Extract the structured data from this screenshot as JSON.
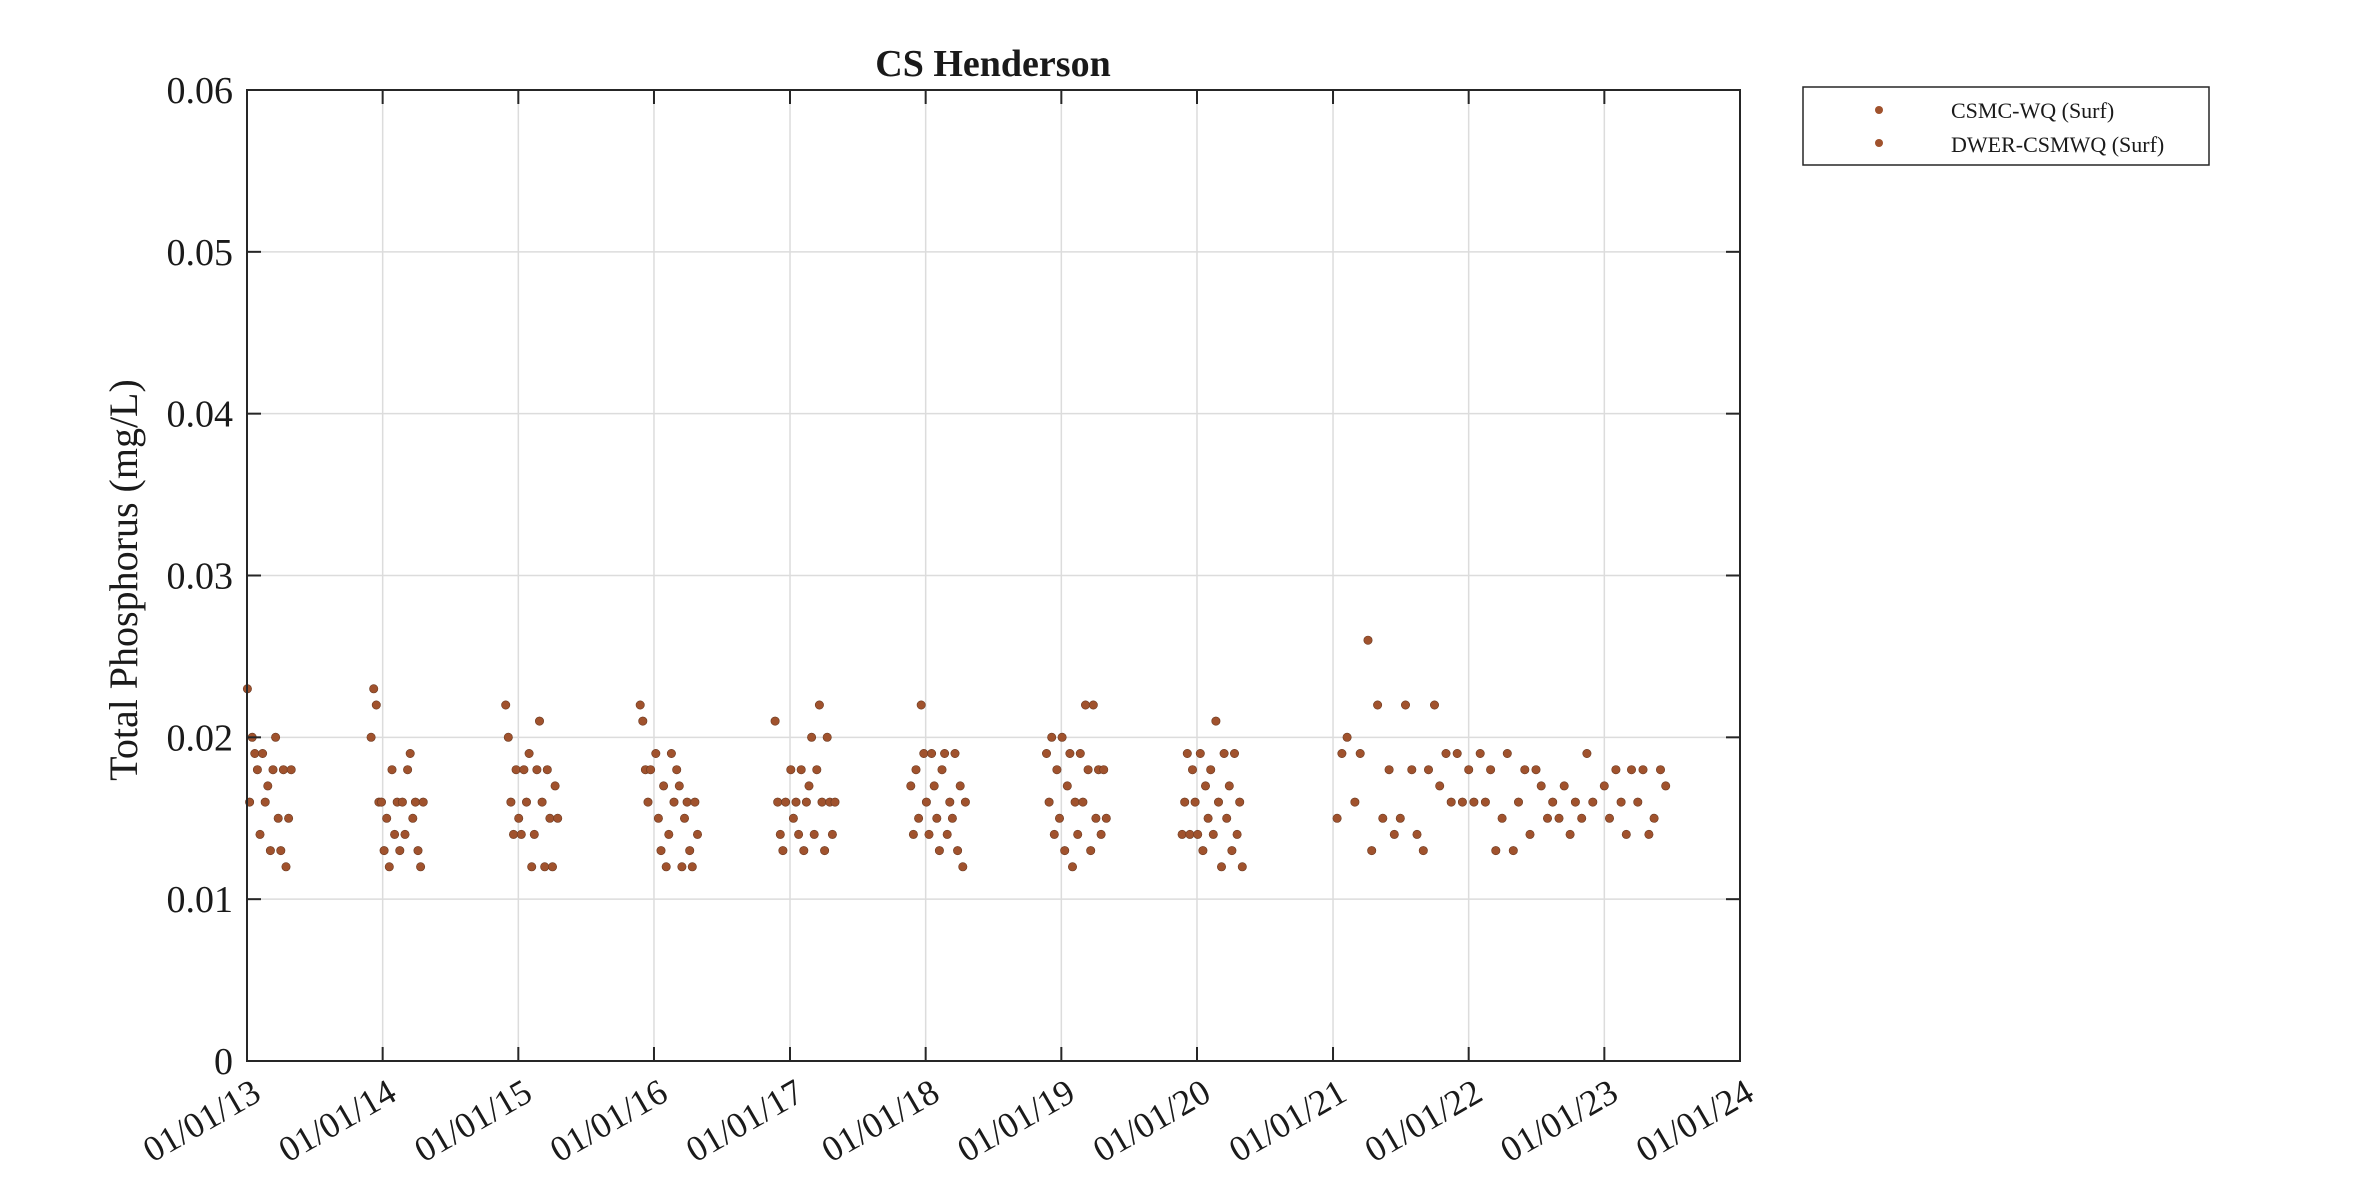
{
  "chart_data": {
    "type": "scatter",
    "title": "CS Henderson",
    "xlabel": "",
    "ylabel": "Total Phosphorus (mg/L)",
    "xlim": [
      "2013-01-01",
      "2024-01-01"
    ],
    "ylim": [
      0,
      0.06
    ],
    "yticks": [
      "0",
      "0.01",
      "0.02",
      "0.03",
      "0.04",
      "0.05",
      "0.06"
    ],
    "xticks": [
      "01/01/13",
      "01/01/14",
      "01/01/15",
      "01/01/16",
      "01/01/17",
      "01/01/18",
      "01/01/19",
      "01/01/20",
      "01/01/21",
      "01/01/22",
      "01/01/23",
      "01/01/24"
    ],
    "grid": true,
    "legend_position": "outside-top-right",
    "marker_color": "#a0522d",
    "series": [
      {
        "name": "CSMC-WQ (Surf)",
        "points": [
          [
            "2013-01-02",
            0.023
          ],
          [
            "2013-01-08",
            0.016
          ],
          [
            "2013-01-15",
            0.02
          ],
          [
            "2013-01-22",
            0.019
          ],
          [
            "2013-01-29",
            0.018
          ],
          [
            "2013-02-05",
            0.014
          ],
          [
            "2013-02-12",
            0.019
          ],
          [
            "2013-02-19",
            0.016
          ],
          [
            "2013-02-26",
            0.017
          ],
          [
            "2013-03-05",
            0.013
          ],
          [
            "2013-03-12",
            0.018
          ],
          [
            "2013-03-19",
            0.02
          ],
          [
            "2013-03-26",
            0.015
          ],
          [
            "2013-04-02",
            0.013
          ],
          [
            "2013-04-09",
            0.018
          ],
          [
            "2013-04-16",
            0.012
          ],
          [
            "2013-04-23",
            0.015
          ],
          [
            "2013-04-30",
            0.018
          ],
          [
            "2013-12-01",
            0.02
          ],
          [
            "2013-12-08",
            0.023
          ],
          [
            "2013-12-15",
            0.022
          ],
          [
            "2013-12-22",
            0.016
          ],
          [
            "2013-12-29",
            0.016
          ],
          [
            "2014-01-05",
            0.013
          ],
          [
            "2014-01-12",
            0.015
          ],
          [
            "2014-01-19",
            0.012
          ],
          [
            "2014-01-26",
            0.018
          ],
          [
            "2014-02-02",
            0.014
          ],
          [
            "2014-02-09",
            0.016
          ],
          [
            "2014-02-16",
            0.013
          ],
          [
            "2014-02-23",
            0.016
          ],
          [
            "2014-03-02",
            0.014
          ],
          [
            "2014-03-09",
            0.018
          ],
          [
            "2014-03-16",
            0.019
          ],
          [
            "2014-03-23",
            0.015
          ],
          [
            "2014-03-30",
            0.016
          ],
          [
            "2014-04-06",
            0.013
          ],
          [
            "2014-04-13",
            0.012
          ],
          [
            "2014-04-20",
            0.016
          ],
          [
            "2014-11-28",
            0.022
          ],
          [
            "2014-12-05",
            0.02
          ],
          [
            "2014-12-12",
            0.016
          ],
          [
            "2014-12-19",
            0.014
          ],
          [
            "2014-12-26",
            0.018
          ],
          [
            "2015-01-02",
            0.015
          ],
          [
            "2015-01-09",
            0.014
          ],
          [
            "2015-01-16",
            0.018
          ],
          [
            "2015-01-23",
            0.016
          ],
          [
            "2015-01-30",
            0.019
          ],
          [
            "2015-02-06",
            0.012
          ],
          [
            "2015-02-13",
            0.014
          ],
          [
            "2015-02-20",
            0.018
          ],
          [
            "2015-02-27",
            0.021
          ],
          [
            "2015-03-06",
            0.016
          ],
          [
            "2015-03-13",
            0.012
          ],
          [
            "2015-03-20",
            0.018
          ],
          [
            "2015-03-27",
            0.015
          ],
          [
            "2015-04-03",
            0.012
          ],
          [
            "2015-04-10",
            0.017
          ],
          [
            "2015-04-17",
            0.015
          ],
          [
            "2015-11-25",
            0.022
          ],
          [
            "2015-12-02",
            0.021
          ],
          [
            "2015-12-09",
            0.018
          ],
          [
            "2015-12-16",
            0.016
          ],
          [
            "2015-12-23",
            0.018
          ],
          [
            "2016-01-06",
            0.019
          ],
          [
            "2016-01-13",
            0.015
          ],
          [
            "2016-01-20",
            0.013
          ],
          [
            "2016-01-27",
            0.017
          ],
          [
            "2016-02-03",
            0.012
          ],
          [
            "2016-02-10",
            0.014
          ],
          [
            "2016-02-17",
            0.019
          ],
          [
            "2016-02-24",
            0.016
          ],
          [
            "2016-03-02",
            0.018
          ],
          [
            "2016-03-09",
            0.017
          ],
          [
            "2016-03-16",
            0.012
          ],
          [
            "2016-03-23",
            0.015
          ],
          [
            "2016-03-30",
            0.016
          ],
          [
            "2016-04-06",
            0.013
          ],
          [
            "2016-04-13",
            0.012
          ],
          [
            "2016-04-20",
            0.016
          ],
          [
            "2016-04-27",
            0.014
          ],
          [
            "2016-11-22",
            0.021
          ],
          [
            "2016-11-29",
            0.016
          ],
          [
            "2016-12-06",
            0.014
          ],
          [
            "2016-12-13",
            0.013
          ],
          [
            "2016-12-20",
            0.016
          ],
          [
            "2017-01-03",
            0.018
          ],
          [
            "2017-01-10",
            0.015
          ],
          [
            "2017-01-17",
            0.016
          ],
          [
            "2017-01-24",
            0.014
          ],
          [
            "2017-01-31",
            0.018
          ],
          [
            "2017-02-07",
            0.013
          ],
          [
            "2017-02-14",
            0.016
          ],
          [
            "2017-02-21",
            0.017
          ],
          [
            "2017-02-28",
            0.02
          ],
          [
            "2017-03-07",
            0.014
          ],
          [
            "2017-03-14",
            0.018
          ],
          [
            "2017-03-21",
            0.022
          ],
          [
            "2017-03-28",
            0.016
          ],
          [
            "2017-04-04",
            0.013
          ],
          [
            "2017-04-11",
            0.02
          ],
          [
            "2017-04-18",
            0.016
          ],
          [
            "2017-04-25",
            0.014
          ],
          [
            "2017-05-02",
            0.016
          ]
        ]
      },
      {
        "name": "DWER-CSMWQ (Surf)",
        "points": [
          [
            "2017-11-22",
            0.017
          ],
          [
            "2017-11-29",
            0.014
          ],
          [
            "2017-12-06",
            0.018
          ],
          [
            "2017-12-13",
            0.015
          ],
          [
            "2017-12-20",
            0.022
          ],
          [
            "2017-12-27",
            0.019
          ],
          [
            "2018-01-03",
            0.016
          ],
          [
            "2018-01-10",
            0.014
          ],
          [
            "2018-01-17",
            0.019
          ],
          [
            "2018-01-24",
            0.017
          ],
          [
            "2018-01-31",
            0.015
          ],
          [
            "2018-02-07",
            0.013
          ],
          [
            "2018-02-14",
            0.018
          ],
          [
            "2018-02-21",
            0.019
          ],
          [
            "2018-02-28",
            0.014
          ],
          [
            "2018-03-07",
            0.016
          ],
          [
            "2018-03-14",
            0.015
          ],
          [
            "2018-03-21",
            0.019
          ],
          [
            "2018-03-28",
            0.013
          ],
          [
            "2018-04-04",
            0.017
          ],
          [
            "2018-04-11",
            0.012
          ],
          [
            "2018-04-18",
            0.016
          ],
          [
            "2018-11-22",
            0.019
          ],
          [
            "2018-11-29",
            0.016
          ],
          [
            "2018-12-06",
            0.02
          ],
          [
            "2018-12-13",
            0.014
          ],
          [
            "2018-12-20",
            0.018
          ],
          [
            "2018-12-27",
            0.015
          ],
          [
            "2019-01-03",
            0.02
          ],
          [
            "2019-01-10",
            0.013
          ],
          [
            "2019-01-17",
            0.017
          ],
          [
            "2019-01-24",
            0.019
          ],
          [
            "2019-01-31",
            0.012
          ],
          [
            "2019-02-07",
            0.016
          ],
          [
            "2019-02-14",
            0.014
          ],
          [
            "2019-02-21",
            0.019
          ],
          [
            "2019-02-28",
            0.016
          ],
          [
            "2019-03-07",
            0.022
          ],
          [
            "2019-03-14",
            0.018
          ],
          [
            "2019-03-21",
            0.013
          ],
          [
            "2019-03-28",
            0.022
          ],
          [
            "2019-04-04",
            0.015
          ],
          [
            "2019-04-11",
            0.018
          ],
          [
            "2019-04-18",
            0.014
          ],
          [
            "2019-04-25",
            0.018
          ],
          [
            "2019-05-02",
            0.015
          ],
          [
            "2019-11-22",
            0.014
          ],
          [
            "2019-11-29",
            0.016
          ],
          [
            "2019-12-06",
            0.019
          ],
          [
            "2019-12-13",
            0.014
          ],
          [
            "2019-12-20",
            0.018
          ],
          [
            "2019-12-27",
            0.016
          ],
          [
            "2020-01-03",
            0.014
          ],
          [
            "2020-01-10",
            0.019
          ],
          [
            "2020-01-17",
            0.013
          ],
          [
            "2020-01-24",
            0.017
          ],
          [
            "2020-01-31",
            0.015
          ],
          [
            "2020-02-07",
            0.018
          ],
          [
            "2020-02-14",
            0.014
          ],
          [
            "2020-02-21",
            0.021
          ],
          [
            "2020-02-28",
            0.016
          ],
          [
            "2020-03-07",
            0.012
          ],
          [
            "2020-03-14",
            0.019
          ],
          [
            "2020-03-21",
            0.015
          ],
          [
            "2020-03-28",
            0.017
          ],
          [
            "2020-04-04",
            0.013
          ],
          [
            "2020-04-11",
            0.019
          ],
          [
            "2020-04-18",
            0.014
          ],
          [
            "2020-04-25",
            0.016
          ],
          [
            "2020-05-02",
            0.012
          ],
          [
            "2021-01-12",
            0.015
          ],
          [
            "2021-01-25",
            0.019
          ],
          [
            "2021-02-08",
            0.02
          ],
          [
            "2021-03-01",
            0.016
          ],
          [
            "2021-03-15",
            0.019
          ],
          [
            "2021-04-05",
            0.026
          ],
          [
            "2021-04-15",
            0.013
          ],
          [
            "2021-05-01",
            0.022
          ],
          [
            "2021-05-15",
            0.015
          ],
          [
            "2021-06-01",
            0.018
          ],
          [
            "2021-06-15",
            0.014
          ],
          [
            "2021-07-01",
            0.015
          ],
          [
            "2021-07-15",
            0.022
          ],
          [
            "2021-08-01",
            0.018
          ],
          [
            "2021-08-15",
            0.014
          ],
          [
            "2021-09-01",
            0.013
          ],
          [
            "2021-09-15",
            0.018
          ],
          [
            "2021-10-01",
            0.022
          ],
          [
            "2021-10-15",
            0.017
          ],
          [
            "2021-11-01",
            0.019
          ],
          [
            "2021-11-15",
            0.016
          ],
          [
            "2021-12-01",
            0.019
          ],
          [
            "2021-12-15",
            0.016
          ],
          [
            "2022-01-01",
            0.018
          ],
          [
            "2022-01-15",
            0.016
          ],
          [
            "2022-02-01",
            0.019
          ],
          [
            "2022-02-15",
            0.016
          ],
          [
            "2022-03-01",
            0.018
          ],
          [
            "2022-03-15",
            0.013
          ],
          [
            "2022-04-01",
            0.015
          ],
          [
            "2022-04-15",
            0.019
          ],
          [
            "2022-05-01",
            0.013
          ],
          [
            "2022-05-15",
            0.016
          ],
          [
            "2022-06-01",
            0.018
          ],
          [
            "2022-06-15",
            0.014
          ],
          [
            "2022-07-01",
            0.018
          ],
          [
            "2022-07-15",
            0.017
          ],
          [
            "2022-08-01",
            0.015
          ],
          [
            "2022-08-15",
            0.016
          ],
          [
            "2022-09-01",
            0.015
          ],
          [
            "2022-09-15",
            0.017
          ],
          [
            "2022-10-01",
            0.014
          ],
          [
            "2022-10-15",
            0.016
          ],
          [
            "2022-11-01",
            0.015
          ],
          [
            "2022-11-15",
            0.019
          ],
          [
            "2022-12-01",
            0.016
          ],
          [
            "2023-01-01",
            0.017
          ],
          [
            "2023-01-15",
            0.015
          ],
          [
            "2023-02-01",
            0.018
          ],
          [
            "2023-02-15",
            0.016
          ],
          [
            "2023-03-01",
            0.014
          ],
          [
            "2023-03-15",
            0.018
          ],
          [
            "2023-04-01",
            0.016
          ],
          [
            "2023-04-15",
            0.018
          ],
          [
            "2023-05-01",
            0.014
          ],
          [
            "2023-05-15",
            0.015
          ],
          [
            "2023-06-01",
            0.018
          ],
          [
            "2023-06-15",
            0.017
          ]
        ]
      }
    ]
  }
}
